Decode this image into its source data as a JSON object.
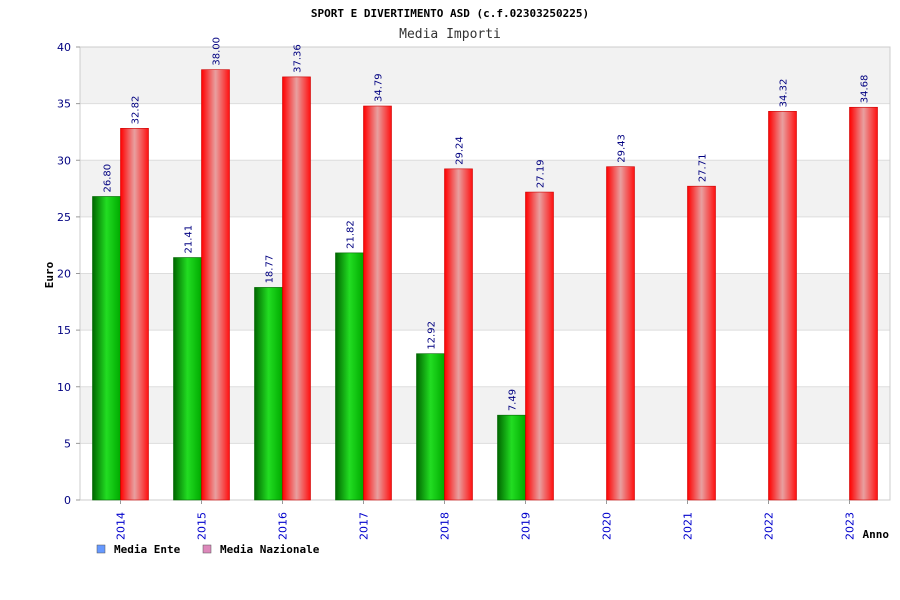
{
  "chart_data": {
    "type": "bar",
    "title": "SPORT E DIVERTIMENTO ASD (c.f.02303250225)",
    "subtitle": "Media Importi",
    "xlabel": "Anno",
    "ylabel": "Euro",
    "ylim": [
      0,
      40
    ],
    "yticks": [
      0,
      5,
      10,
      15,
      20,
      25,
      30,
      35,
      40
    ],
    "grid": true,
    "legend_position": "bottom-left",
    "categories": [
      "2014",
      "2015",
      "2016",
      "2017",
      "2018",
      "2019",
      "2020",
      "2021",
      "2022",
      "2023"
    ],
    "series": [
      {
        "name": "Media Ente",
        "color": "#00aa00",
        "legend_color": "#6699ff",
        "values": [
          26.8,
          21.41,
          18.77,
          21.82,
          12.92,
          7.49,
          null,
          null,
          null,
          null
        ],
        "labels": [
          "26.80",
          "21.41",
          "18.77",
          "21.82",
          "12.92",
          "7.49",
          null,
          null,
          null,
          null
        ]
      },
      {
        "name": "Media Nazionale",
        "color": "#ee0000",
        "legend_color": "#dd88bb",
        "values": [
          32.82,
          38.0,
          37.36,
          34.79,
          29.24,
          27.19,
          29.43,
          27.71,
          34.32,
          34.68
        ],
        "labels": [
          "32.82",
          "38.00",
          "37.36",
          "34.79",
          "29.24",
          "27.19",
          "29.43",
          "27.71",
          "34.32",
          "34.68"
        ]
      }
    ]
  }
}
